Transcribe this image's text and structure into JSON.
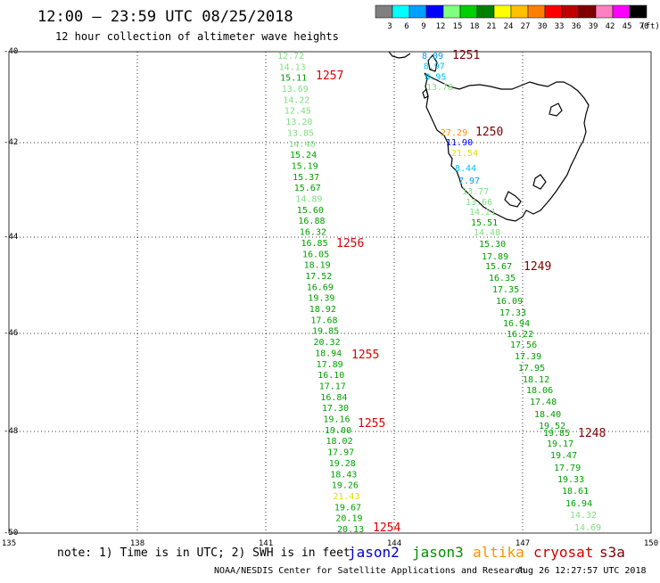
{
  "header": {
    "title": "12:00 – 23:59 UTC 08/25/2018",
    "subtitle": "12 hour collection of altimeter wave heights"
  },
  "legend": {
    "labels": [
      "3",
      "6",
      "9",
      "12",
      "15",
      "18",
      "21",
      "24",
      "27",
      "30",
      "33",
      "36",
      "39",
      "42",
      "45",
      "70",
      "(ft)"
    ],
    "colors": [
      "#808080",
      "#00ffff",
      "#00a0ff",
      "#0000ff",
      "#80ff80",
      "#00d000",
      "#008000",
      "#ffff00",
      "#ffc000",
      "#ff8000",
      "#ff0000",
      "#c00000",
      "#800000",
      "#ff80c0",
      "#ff00ff",
      "#000000"
    ]
  },
  "axes": {
    "lon_ticks": [
      "135",
      "138",
      "141",
      "144",
      "147",
      "150"
    ],
    "lat_ticks": [
      "-40",
      "-42",
      "-44",
      "-46",
      "-48",
      "-50"
    ]
  },
  "footer": {
    "note": "note: 1) Time is in UTC; 2) SWH is in feet",
    "satellites": [
      {
        "name": "jason2",
        "color": "#0000d0"
      },
      {
        "name": "jason3",
        "color": "#009000"
      },
      {
        "name": "altika",
        "color": "#ff9000"
      },
      {
        "name": "cryosat",
        "color": "#d00000"
      },
      {
        "name": "s3a",
        "color": "#800000"
      }
    ],
    "credit": "NOAA/NESDIS Center for Satellite Applications and Research",
    "timestamp": "Aug 26 12:27:57 UTC 2018"
  },
  "passes": [
    {
      "label": "1251",
      "color": "#800000"
    },
    {
      "label": "1257",
      "color": "#e00000"
    },
    {
      "label": "1250",
      "color": "#800000"
    },
    {
      "label": "1256",
      "color": "#e00000"
    },
    {
      "label": "1249",
      "color": "#800000"
    },
    {
      "label": "1255",
      "color": "#e00000"
    },
    {
      "label": "1255",
      "color": "#e00000"
    },
    {
      "label": "1248",
      "color": "#800000"
    },
    {
      "label": "1254",
      "color": "#e00000"
    }
  ],
  "track_west": [
    {
      "v": "12.72",
      "c": "#80e080"
    },
    {
      "v": "14.13",
      "c": "#80e080"
    },
    {
      "v": "15.11",
      "c": "#00a000"
    },
    {
      "v": "13.69",
      "c": "#80e080"
    },
    {
      "v": "14.22",
      "c": "#80e080"
    },
    {
      "v": "12.45",
      "c": "#80e080"
    },
    {
      "v": "13.20",
      "c": "#80e080"
    },
    {
      "v": "13.85",
      "c": "#80e080"
    },
    {
      "v": "14.40",
      "c": "#80e080"
    },
    {
      "v": "15.24",
      "c": "#00a000"
    },
    {
      "v": "15.19",
      "c": "#00a000"
    },
    {
      "v": "15.37",
      "c": "#00a000"
    },
    {
      "v": "15.67",
      "c": "#00a000"
    },
    {
      "v": "14.89",
      "c": "#80e080"
    },
    {
      "v": "15.60",
      "c": "#00a000"
    },
    {
      "v": "16.88",
      "c": "#00a000"
    },
    {
      "v": "16.32",
      "c": "#00a000"
    },
    {
      "v": "16.85",
      "c": "#00a000"
    },
    {
      "v": "16.05",
      "c": "#00a000"
    },
    {
      "v": "18.19",
      "c": "#00a000"
    },
    {
      "v": "17.52",
      "c": "#00a000"
    },
    {
      "v": "16.69",
      "c": "#00a000"
    },
    {
      "v": "19.39",
      "c": "#00a000"
    },
    {
      "v": "18.92",
      "c": "#00a000"
    },
    {
      "v": "17.68",
      "c": "#00a000"
    },
    {
      "v": "19.85",
      "c": "#00a000"
    },
    {
      "v": "20.32",
      "c": "#00a000"
    },
    {
      "v": "18.94",
      "c": "#00a000"
    },
    {
      "v": "17.89",
      "c": "#00a000"
    },
    {
      "v": "16.10",
      "c": "#00a000"
    },
    {
      "v": "17.17",
      "c": "#00a000"
    },
    {
      "v": "16.84",
      "c": "#00a000"
    },
    {
      "v": "17.30",
      "c": "#00a000"
    },
    {
      "v": "19.16",
      "c": "#00a000"
    },
    {
      "v": "19.00",
      "c": "#00a000"
    },
    {
      "v": "18.02",
      "c": "#00a000"
    },
    {
      "v": "17.97",
      "c": "#00a000"
    },
    {
      "v": "19.28",
      "c": "#00a000"
    },
    {
      "v": "18.43",
      "c": "#00a000"
    },
    {
      "v": "19.26",
      "c": "#00a000"
    },
    {
      "v": "21.43",
      "c": "#e0e000"
    },
    {
      "v": "19.67",
      "c": "#00a000"
    },
    {
      "v": "20.19",
      "c": "#00a000"
    },
    {
      "v": "20.13",
      "c": "#00a000"
    }
  ],
  "track_north": [
    {
      "v": "8.09",
      "c": "#00a0ff"
    },
    {
      "v": "8.97",
      "c": "#00c0ff"
    },
    {
      "v": "8.95",
      "c": "#00c0ff"
    },
    {
      "v": "13.78",
      "c": "#80e080"
    }
  ],
  "track_east": [
    {
      "v": "27.29",
      "c": "#ff9000"
    },
    {
      "v": "11.90",
      "c": "#0000ff"
    },
    {
      "v": "21.54",
      "c": "#e0e000"
    },
    {
      "v": "8.44",
      "c": "#00c0ff"
    },
    {
      "v": "7.97",
      "c": "#00a0ff"
    },
    {
      "v": "13.77",
      "c": "#80e080"
    },
    {
      "v": "13.66",
      "c": "#80e080"
    },
    {
      "v": "14.21",
      "c": "#80e080"
    },
    {
      "v": "15.51",
      "c": "#00a000"
    },
    {
      "v": "14.48",
      "c": "#80e080"
    },
    {
      "v": "15.30",
      "c": "#00a000"
    },
    {
      "v": "17.89",
      "c": "#00a000"
    },
    {
      "v": "15.67",
      "c": "#00a000"
    },
    {
      "v": "16.35",
      "c": "#00a000"
    },
    {
      "v": "17.35",
      "c": "#00a000"
    },
    {
      "v": "16.09",
      "c": "#00a000"
    },
    {
      "v": "17.33",
      "c": "#00a000"
    },
    {
      "v": "16.94",
      "c": "#00a000"
    },
    {
      "v": "16.22",
      "c": "#00a000"
    },
    {
      "v": "17.56",
      "c": "#00a000"
    },
    {
      "v": "17.39",
      "c": "#00a000"
    },
    {
      "v": "17.95",
      "c": "#00a000"
    },
    {
      "v": "18.12",
      "c": "#00a000"
    },
    {
      "v": "18.06",
      "c": "#00a000"
    },
    {
      "v": "17.48",
      "c": "#00a000"
    },
    {
      "v": "18.40",
      "c": "#00a000"
    },
    {
      "v": "19.52",
      "c": "#00a000"
    },
    {
      "v": "19.85",
      "c": "#00a000"
    },
    {
      "v": "19.17",
      "c": "#00a000"
    },
    {
      "v": "19.47",
      "c": "#00a000"
    },
    {
      "v": "17.79",
      "c": "#00a000"
    },
    {
      "v": "19.33",
      "c": "#00a000"
    },
    {
      "v": "18.61",
      "c": "#00a000"
    },
    {
      "v": "16.94",
      "c": "#00a000"
    },
    {
      "v": "14.32",
      "c": "#80e080"
    },
    {
      "v": "14.69",
      "c": "#80e080"
    }
  ]
}
